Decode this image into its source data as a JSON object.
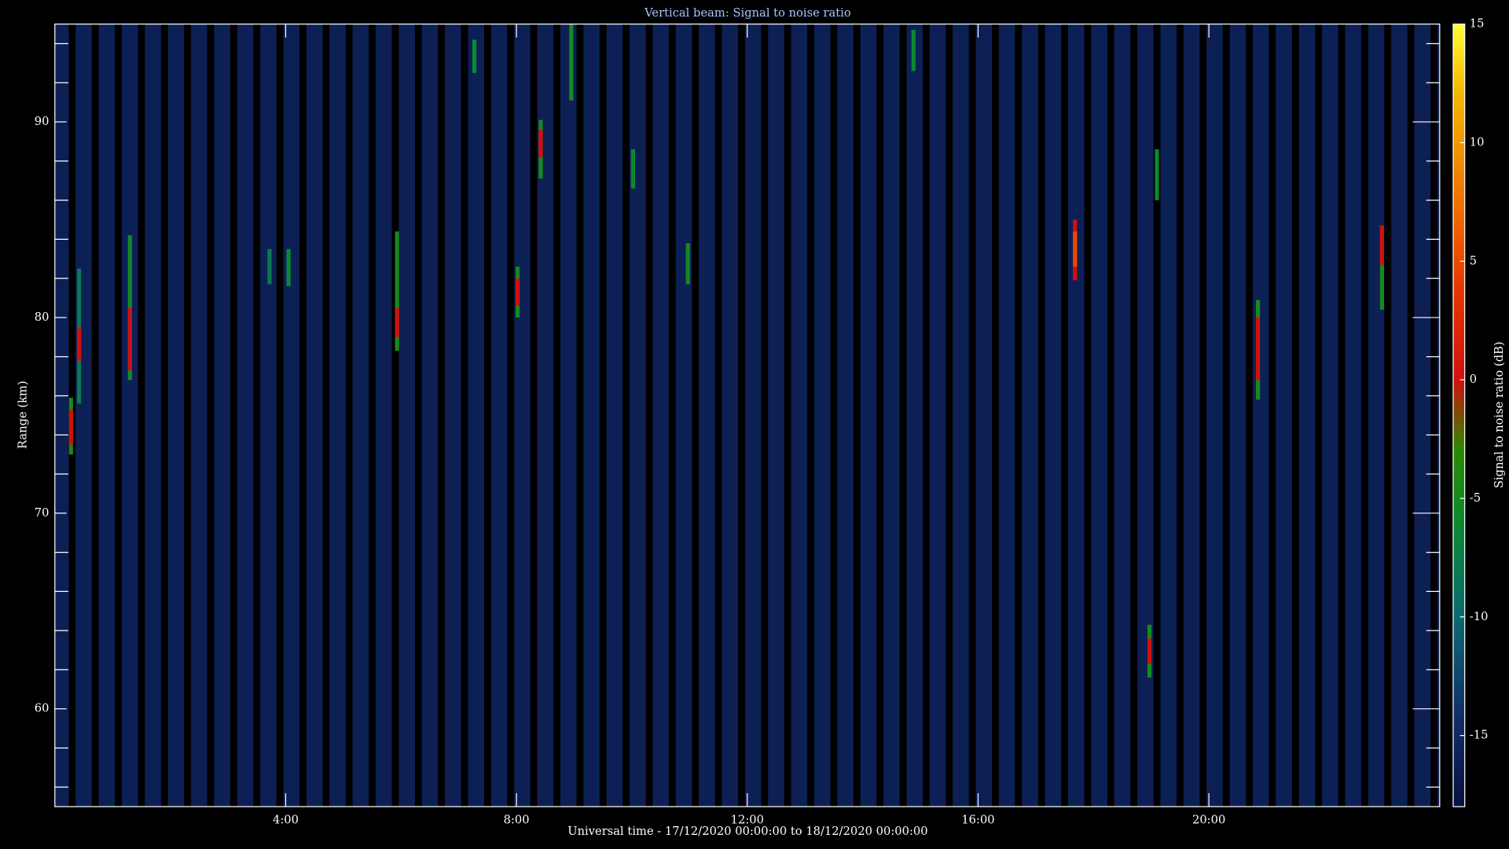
{
  "chart_data": {
    "type": "heatmap",
    "title": "Vertical beam: Signal to noise ratio",
    "x_label": "Universal time - 17/12/2020 00:00:00 to 18/12/2020 00:00:00",
    "y_label": "Range (km)",
    "colorbar_label": "Signal to noise ratio (dB)",
    "xlim": [
      0,
      24
    ],
    "xticks": [
      {
        "value": 4,
        "label": "4:00"
      },
      {
        "value": 8,
        "label": "8:00"
      },
      {
        "value": 12,
        "label": "12:00"
      },
      {
        "value": 16,
        "label": "16:00"
      },
      {
        "value": 20,
        "label": "20:00"
      }
    ],
    "ylim": [
      55,
      95
    ],
    "yticks": [
      60,
      70,
      80,
      90
    ],
    "yminorticks": [
      56,
      58,
      62,
      64,
      66,
      68,
      72,
      74,
      76,
      78,
      82,
      84,
      86,
      88,
      92,
      94
    ],
    "clim": [
      -18,
      15
    ],
    "cticks": [
      -15,
      -10,
      -5,
      0,
      5,
      10,
      15
    ],
    "colormap": [
      {
        "value": -18,
        "color": "#081040"
      },
      {
        "value": -14,
        "color": "#12306a"
      },
      {
        "value": -10,
        "color": "#0a6a72"
      },
      {
        "value": -6,
        "color": "#0a8a30"
      },
      {
        "value": -3,
        "color": "#2a8a00"
      },
      {
        "value": 0,
        "color": "#d01010"
      },
      {
        "value": 4,
        "color": "#e83a00"
      },
      {
        "value": 8,
        "color": "#f07a00"
      },
      {
        "value": 12,
        "color": "#f4b400"
      },
      {
        "value": 15,
        "color": "#ffff30"
      }
    ],
    "background_value": -16,
    "time_step": 0.07,
    "gap_width": 0.12,
    "gaps": [
      0.3,
      0.7,
      1.1,
      1.5,
      1.9,
      2.3,
      2.7,
      3.1,
      3.5,
      3.9,
      4.3,
      4.7,
      5.1,
      5.5,
      5.9,
      6.3,
      6.7,
      7.1,
      7.5,
      7.9,
      8.3,
      8.7,
      9.1,
      9.5,
      9.9,
      10.3,
      10.7,
      11.1,
      11.5,
      11.9,
      12.3,
      12.7,
      13.1,
      13.5,
      13.9,
      14.3,
      14.7,
      15.1,
      15.5,
      15.9,
      16.3,
      16.7,
      17.1,
      17.5,
      17.9,
      18.3,
      18.7,
      19.1,
      19.5,
      19.9,
      20.3,
      20.7,
      21.1,
      21.5,
      21.9,
      22.3,
      22.7,
      23.1,
      23.5,
      23.9
    ],
    "cells": [
      {
        "time": 0.28,
        "range": [
          73,
          75.9
        ],
        "value": -5
      },
      {
        "time": 0.28,
        "range": [
          73.5,
          75.3
        ],
        "value": 0
      },
      {
        "time": 0.42,
        "range": [
          75.6,
          82.5
        ],
        "value": -8
      },
      {
        "time": 0.42,
        "range": [
          77.8,
          79.5
        ],
        "value": 0
      },
      {
        "time": 1.3,
        "range": [
          76.8,
          84.2
        ],
        "value": -5
      },
      {
        "time": 1.3,
        "range": [
          77.3,
          80.5
        ],
        "value": 0
      },
      {
        "time": 3.72,
        "range": [
          81.7,
          83.5
        ],
        "value": -8
      },
      {
        "time": 4.05,
        "range": [
          81.6,
          83.5
        ],
        "value": -6
      },
      {
        "time": 5.93,
        "range": [
          78.3,
          84.4
        ],
        "value": -5
      },
      {
        "time": 5.93,
        "range": [
          79,
          80.5
        ],
        "value": 0
      },
      {
        "time": 7.27,
        "range": [
          92.5,
          94.2
        ],
        "value": -6
      },
      {
        "time": 8.02,
        "range": [
          80,
          82.6
        ],
        "value": -5
      },
      {
        "time": 8.02,
        "range": [
          80.6,
          82
        ],
        "value": 0
      },
      {
        "time": 8.42,
        "range": [
          87.1,
          90.1
        ],
        "value": -5
      },
      {
        "time": 8.42,
        "range": [
          88.2,
          89.6
        ],
        "value": 0
      },
      {
        "time": 8.95,
        "range": [
          91.1,
          95
        ],
        "value": -5
      },
      {
        "time": 10.02,
        "range": [
          86.6,
          88.6
        ],
        "value": -6
      },
      {
        "time": 10.97,
        "range": [
          81.7,
          83.8
        ],
        "value": -5
      },
      {
        "time": 14.88,
        "range": [
          92.6,
          94.7
        ],
        "value": -6
      },
      {
        "time": 17.68,
        "range": [
          81.9,
          85
        ],
        "value": 0
      },
      {
        "time": 17.68,
        "range": [
          82.6,
          84.4
        ],
        "value": 5
      },
      {
        "time": 18.97,
        "range": [
          61.6,
          64.3
        ],
        "value": -5
      },
      {
        "time": 18.97,
        "range": [
          62.3,
          63.6
        ],
        "value": 0
      },
      {
        "time": 19.1,
        "range": [
          86,
          88.6
        ],
        "value": -6
      },
      {
        "time": 20.85,
        "range": [
          75.8,
          80.9
        ],
        "value": -5
      },
      {
        "time": 20.85,
        "range": [
          76.8,
          80
        ],
        "value": 0
      },
      {
        "time": 23,
        "range": [
          80.4,
          84.7
        ],
        "value": -5
      },
      {
        "time": 23,
        "range": [
          82.7,
          84.7
        ],
        "value": 0
      }
    ]
  }
}
